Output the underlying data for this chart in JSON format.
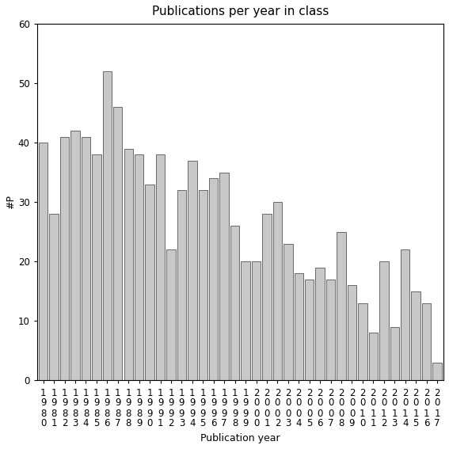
{
  "title": "Publications per year in class",
  "xlabel": "Publication year",
  "ylabel": "#P",
  "years": [
    1980,
    1981,
    1982,
    1983,
    1984,
    1985,
    1986,
    1987,
    1988,
    1989,
    1990,
    1991,
    1992,
    1993,
    1994,
    1995,
    1996,
    1997,
    1998,
    1999,
    2000,
    2001,
    2002,
    2003,
    2004,
    2005,
    2006,
    2007,
    2008,
    2009,
    2010,
    2011,
    2012,
    2013,
    2014,
    2015,
    2016,
    2017
  ],
  "values": [
    40,
    28,
    41,
    42,
    41,
    38,
    52,
    46,
    39,
    38,
    33,
    38,
    22,
    32,
    37,
    32,
    34,
    35,
    26,
    20,
    20,
    28,
    30,
    23,
    18,
    17,
    19,
    17,
    25,
    16,
    13,
    8,
    20,
    9,
    22,
    15,
    13,
    3
  ],
  "bar_color": "#c8c8c8",
  "bar_edgecolor": "#555555",
  "ylim": [
    0,
    60
  ],
  "yticks": [
    0,
    10,
    20,
    30,
    40,
    50,
    60
  ],
  "background_color": "#ffffff",
  "title_fontsize": 11,
  "axis_label_fontsize": 9,
  "tick_fontsize": 8.5
}
